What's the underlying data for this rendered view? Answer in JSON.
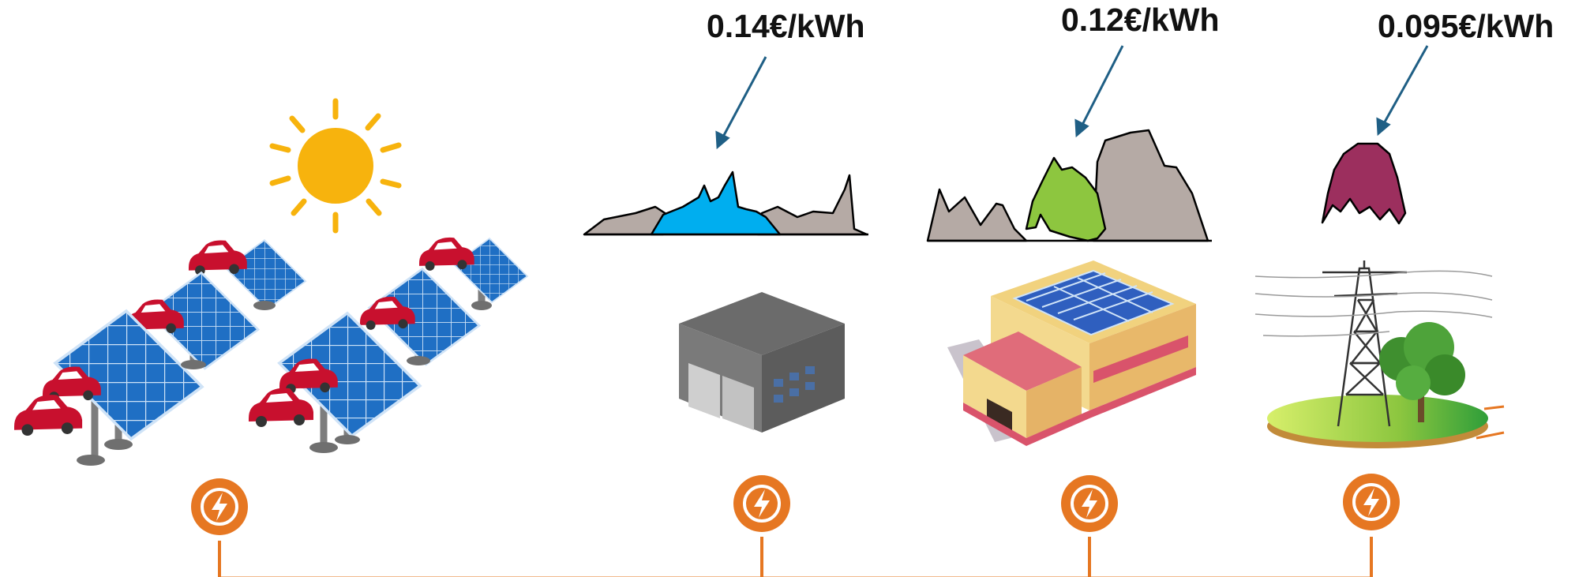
{
  "prices": [
    {
      "label": "0.14€/kWh",
      "profile_color": "#00aeef"
    },
    {
      "label": "0.12€/kWh",
      "profile_color": "#8dc63f"
    },
    {
      "label": "0.095€/kWh",
      "profile_color": "#9c2f5e"
    }
  ],
  "colors": {
    "arrow": "#1f5f85",
    "mountain_gray": "#b5aaa5",
    "network_orange": "#e67722",
    "panel_blue": "#1f6fc4",
    "sun": "#f7b30d",
    "car_red": "#c8102e"
  },
  "icons": [
    "sun-icon",
    "solar-carport-icon",
    "warehouse-icon",
    "factory-solar-roof-icon",
    "power-pylon-icon",
    "lightning-icon"
  ]
}
